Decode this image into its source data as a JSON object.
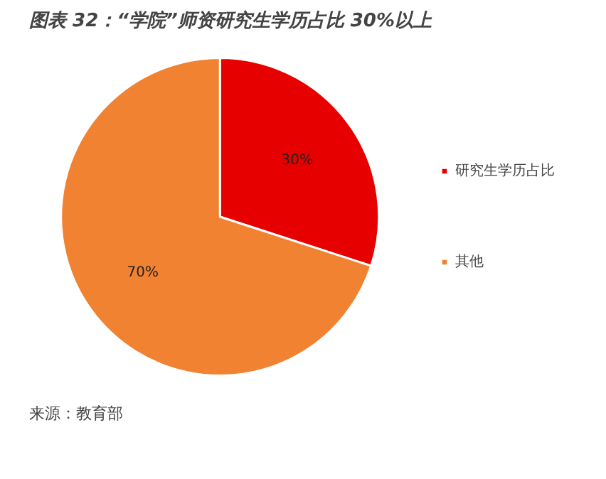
{
  "chart_data": {
    "type": "pie",
    "title": "图表 32：“学院”师资研究生学历占比 30%以上",
    "categories": [
      "研究生学历占比",
      "其他"
    ],
    "values": [
      30,
      70
    ],
    "colors": [
      "#e60000",
      "#f08232"
    ],
    "value_labels": [
      "30%",
      "70%"
    ],
    "legend": "right",
    "annotations": [
      "来源：教育部"
    ]
  }
}
